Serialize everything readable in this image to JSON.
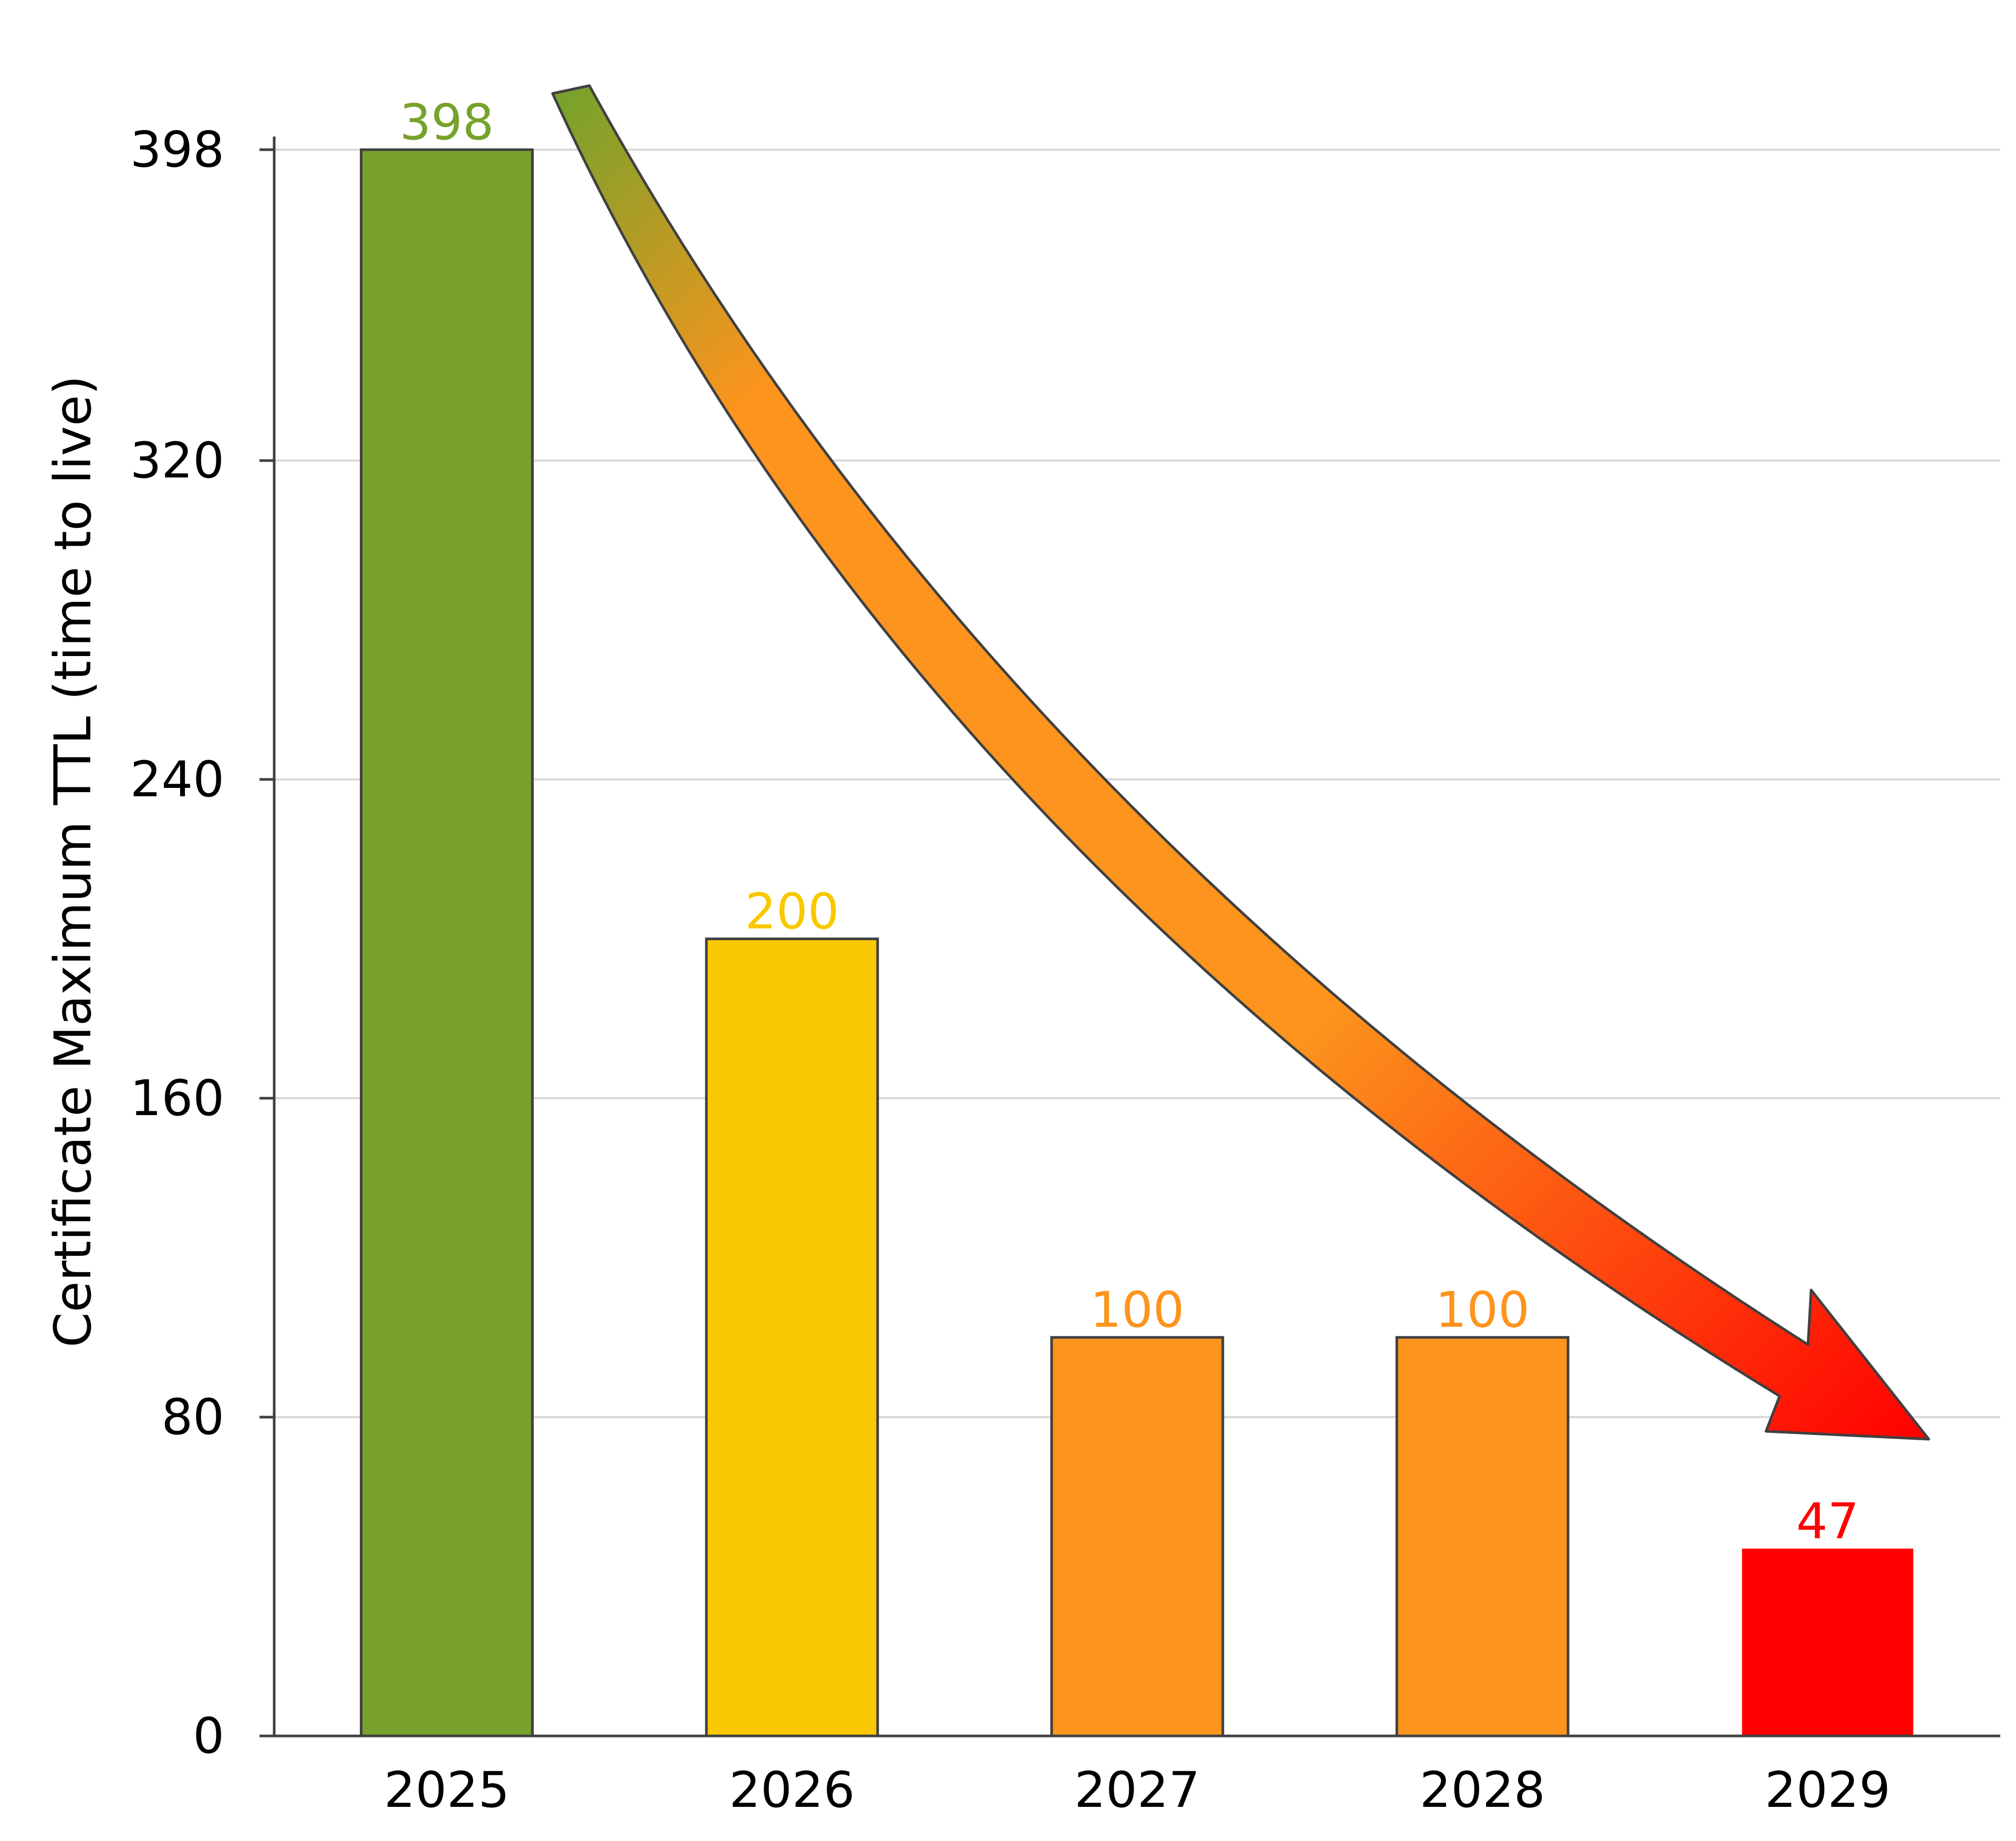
{
  "chart_data": {
    "type": "bar",
    "title": "",
    "xlabel": "",
    "ylabel": "Certificate Maximum TTL (time to live)",
    "categories": [
      "2025",
      "2026",
      "2027",
      "2028",
      "2029"
    ],
    "values": [
      398,
      200,
      100,
      100,
      47
    ],
    "value_labels": [
      "398",
      "200",
      "100",
      "100",
      "47"
    ],
    "bar_colors": [
      "#78A22B",
      "#F9C800",
      "#FC941D",
      "#FC941D",
      "#FF0000"
    ],
    "label_colors": [
      "#78A22B",
      "#F9C800",
      "#FC941D",
      "#FC941D",
      "#FF0000"
    ],
    "y_ticks": [
      0,
      80,
      160,
      240,
      320,
      398
    ],
    "y_tick_labels": [
      "0",
      "80",
      "160",
      "240",
      "320",
      "398"
    ],
    "ylim": [
      0,
      398
    ],
    "grid": true,
    "legend": "none",
    "annotation": {
      "kind": "decreasing-trend-arrow",
      "colors": [
        "#78A22B",
        "#FC941D",
        "#FF0000"
      ]
    }
  }
}
